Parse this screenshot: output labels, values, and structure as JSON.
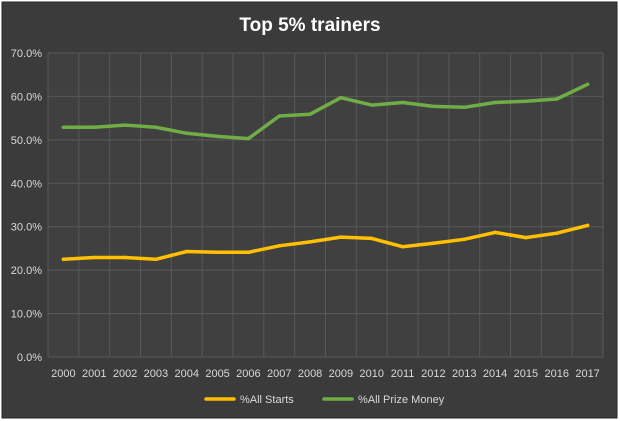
{
  "chart_data": {
    "type": "line",
    "title": "Top 5% trainers",
    "categories": [
      "2000",
      "2001",
      "2002",
      "2003",
      "2004",
      "2005",
      "2006",
      "2007",
      "2008",
      "2009",
      "2010",
      "2011",
      "2012",
      "2013",
      "2014",
      "2015",
      "2016",
      "2017"
    ],
    "y_tick_labels": [
      "0.0%",
      "10.0%",
      "20.0%",
      "30.0%",
      "40.0%",
      "50.0%",
      "60.0%",
      "70.0%"
    ],
    "ylim": [
      0,
      70
    ],
    "grid": true,
    "legend_position": "bottom",
    "series": [
      {
        "name": "%All Starts",
        "color": "#ffc000",
        "values": [
          22.5,
          22.9,
          22.9,
          22.5,
          24.3,
          24.1,
          24.1,
          25.6,
          26.5,
          27.6,
          27.3,
          25.4,
          26.2,
          27.1,
          28.7,
          27.5,
          28.5,
          30.3
        ]
      },
      {
        "name": "%All Prize Money",
        "color": "#70ad47",
        "values": [
          52.9,
          52.9,
          53.4,
          52.9,
          51.5,
          50.8,
          50.3,
          55.5,
          55.9,
          59.7,
          58.0,
          58.6,
          57.7,
          57.5,
          58.6,
          58.9,
          59.4,
          62.8
        ]
      }
    ],
    "colors": {
      "outer_background": "#3b3b3b",
      "plot_background": "#404040",
      "gridline": "#595959",
      "text": "#d9d9d9"
    }
  }
}
